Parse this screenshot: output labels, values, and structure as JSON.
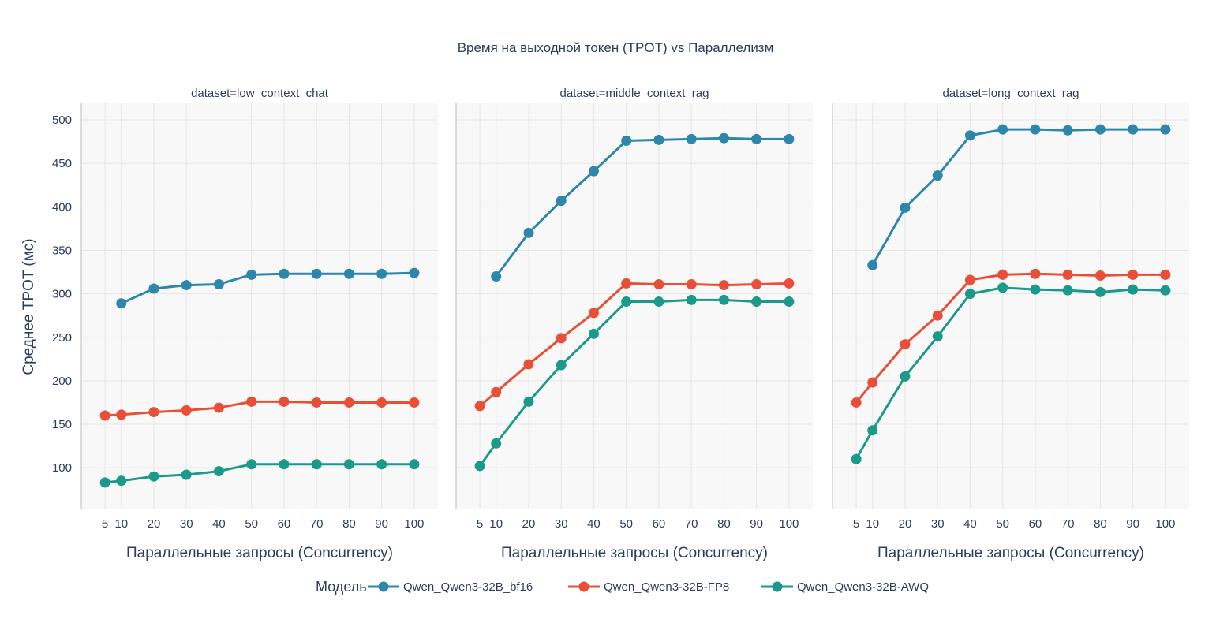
{
  "chart_data": {
    "type": "line",
    "title": "Время на выходной токен (TPOT) vs Параллелизм",
    "ylabel": "Среднее TPOT (мс)",
    "xlabel": "Параллельные запросы (Concurrency)",
    "ylim": [
      53,
      520
    ],
    "xlim": [
      -2.3,
      107.3
    ],
    "yticks": [
      100,
      150,
      200,
      250,
      300,
      350,
      400,
      450,
      500
    ],
    "xticks": [
      5,
      10,
      20,
      30,
      40,
      50,
      60,
      70,
      80,
      90,
      100
    ],
    "grid": true,
    "legend": {
      "title": "Модель",
      "placement": "bottom"
    },
    "series_meta": [
      {
        "name": "Qwen_Qwen3-32B_bf16",
        "color": "#2e86ab"
      },
      {
        "name": "Qwen_Qwen3-32B-FP8",
        "color": "#e84f37"
      },
      {
        "name": "Qwen_Qwen3-32B-AWQ",
        "color": "#1b998b"
      }
    ],
    "panels": [
      {
        "title": "dataset=low_context_chat",
        "series": [
          {
            "name": "Qwen_Qwen3-32B_bf16",
            "x": [
              10,
              20,
              30,
              40,
              50,
              60,
              70,
              80,
              90,
              100
            ],
            "y": [
              289,
              306,
              310,
              311,
              322,
              323,
              323,
              323,
              323,
              324
            ]
          },
          {
            "name": "Qwen_Qwen3-32B-FP8",
            "x": [
              5,
              10,
              20,
              30,
              40,
              50,
              60,
              70,
              80,
              90,
              100
            ],
            "y": [
              160,
              161,
              164,
              166,
              169,
              176,
              176,
              175,
              175,
              175,
              175
            ]
          },
          {
            "name": "Qwen_Qwen3-32B-AWQ",
            "x": [
              5,
              10,
              20,
              30,
              40,
              50,
              60,
              70,
              80,
              90,
              100
            ],
            "y": [
              83,
              85,
              90,
              92,
              96,
              104,
              104,
              104,
              104,
              104,
              104
            ]
          }
        ]
      },
      {
        "title": "dataset=middle_context_rag",
        "series": [
          {
            "name": "Qwen_Qwen3-32B_bf16",
            "x": [
              10,
              20,
              30,
              40,
              50,
              60,
              70,
              80,
              90,
              100
            ],
            "y": [
              320,
              370,
              407,
              441,
              476,
              477,
              478,
              479,
              478,
              478
            ]
          },
          {
            "name": "Qwen_Qwen3-32B-FP8",
            "x": [
              5,
              10,
              20,
              30,
              40,
              50,
              60,
              70,
              80,
              90,
              100
            ],
            "y": [
              171,
              187,
              219,
              249,
              278,
              312,
              311,
              311,
              310,
              311,
              312
            ]
          },
          {
            "name": "Qwen_Qwen3-32B-AWQ",
            "x": [
              5,
              10,
              20,
              30,
              40,
              50,
              60,
              70,
              80,
              90,
              100
            ],
            "y": [
              102,
              128,
              176,
              218,
              254,
              291,
              291,
              293,
              293,
              291,
              291
            ]
          }
        ]
      },
      {
        "title": "dataset=long_context_rag",
        "series": [
          {
            "name": "Qwen_Qwen3-32B_bf16",
            "x": [
              10,
              20,
              30,
              40,
              50,
              60,
              70,
              80,
              90,
              100
            ],
            "y": [
              333,
              399,
              436,
              482,
              489,
              489,
              488,
              489,
              489,
              489
            ]
          },
          {
            "name": "Qwen_Qwen3-32B-FP8",
            "x": [
              5,
              10,
              20,
              30,
              40,
              50,
              60,
              70,
              80,
              90,
              100
            ],
            "y": [
              175,
              198,
              242,
              275,
              316,
              322,
              323,
              322,
              321,
              322,
              322
            ]
          },
          {
            "name": "Qwen_Qwen3-32B-AWQ",
            "x": [
              5,
              10,
              20,
              30,
              40,
              50,
              60,
              70,
              80,
              90,
              100
            ],
            "y": [
              110,
              143,
              205,
              251,
              300,
              307,
              305,
              304,
              302,
              305,
              304
            ]
          }
        ]
      }
    ]
  }
}
